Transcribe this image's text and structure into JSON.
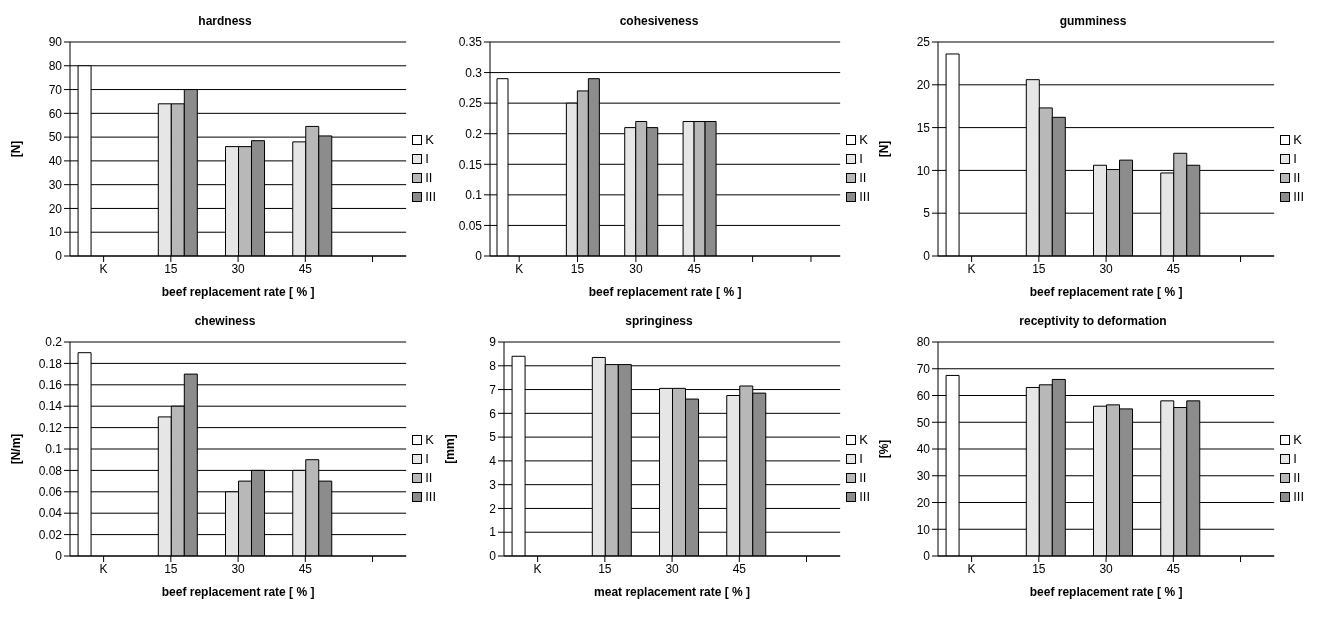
{
  "chart_data": [
    {
      "type": "bar",
      "title": "hardness",
      "xlabel": "beef replacement rate [ % ]",
      "ylabel": "[N]",
      "categories": [
        "K",
        "15",
        "30",
        "45",
        null
      ],
      "ylim": [
        0,
        90
      ],
      "yticks": [
        0,
        10,
        20,
        30,
        40,
        50,
        60,
        70,
        80,
        90
      ],
      "grid": "y",
      "legend": "right",
      "series": [
        {
          "name": "K",
          "color": "#ffffff",
          "values": [
            80,
            null,
            null,
            null,
            null
          ]
        },
        {
          "name": "I",
          "color": "#e6e6e6",
          "values": [
            null,
            64,
            46,
            48,
            null
          ]
        },
        {
          "name": "II",
          "color": "#b8b8b8",
          "values": [
            null,
            64,
            46,
            54.5,
            null
          ]
        },
        {
          "name": "III",
          "color": "#8c8c8c",
          "values": [
            null,
            70,
            48.5,
            50.5,
            null
          ]
        }
      ]
    },
    {
      "type": "bar",
      "title": "cohesiveness",
      "xlabel": "beef replacement rate  [ % ]",
      "categories": [
        "K",
        "15",
        "30",
        "45",
        null,
        null
      ],
      "ylim": [
        0,
        0.35
      ],
      "yticks": [
        0,
        0.05,
        0.1,
        0.15,
        0.2,
        0.25,
        0.3,
        0.35
      ],
      "grid": "y",
      "legend": "right",
      "series": [
        {
          "name": "K",
          "color": "#ffffff",
          "values": [
            0.29,
            null,
            null,
            null,
            null,
            null
          ]
        },
        {
          "name": "I",
          "color": "#e6e6e6",
          "values": [
            null,
            0.25,
            0.21,
            0.22,
            null,
            null
          ]
        },
        {
          "name": "II",
          "color": "#b8b8b8",
          "values": [
            null,
            0.27,
            0.22,
            0.22,
            null,
            null
          ]
        },
        {
          "name": "III",
          "color": "#8c8c8c",
          "values": [
            null,
            0.29,
            0.21,
            0.22,
            null,
            null
          ]
        }
      ]
    },
    {
      "type": "bar",
      "title": "gumminess",
      "xlabel": "beef replacement rate [ % ]",
      "ylabel": "[N]",
      "categories": [
        "K",
        "15",
        "30",
        "45",
        null
      ],
      "ylim": [
        0,
        25
      ],
      "yticks": [
        0,
        5,
        10,
        15,
        20,
        25
      ],
      "grid": "y",
      "legend": "right",
      "series": [
        {
          "name": "K",
          "color": "#ffffff",
          "values": [
            23.6,
            null,
            null,
            null,
            null
          ]
        },
        {
          "name": "I",
          "color": "#e6e6e6",
          "values": [
            null,
            20.6,
            10.6,
            9.7,
            null
          ]
        },
        {
          "name": "II",
          "color": "#b8b8b8",
          "values": [
            null,
            17.3,
            10.1,
            12,
            null
          ]
        },
        {
          "name": "III",
          "color": "#8c8c8c",
          "values": [
            null,
            16.2,
            11.2,
            10.6,
            null
          ]
        }
      ]
    },
    {
      "type": "bar",
      "title": "chewiness",
      "xlabel": "beef replacement rate  [ % ]",
      "ylabel": "[N/m]",
      "categories": [
        "K",
        "15",
        "30",
        "45",
        null
      ],
      "ylim": [
        0,
        0.2
      ],
      "yticks": [
        0,
        0.02,
        0.04,
        0.06,
        0.08,
        0.1,
        0.12,
        0.14,
        0.16,
        0.18,
        0.2
      ],
      "grid": "y",
      "legend": "right",
      "series": [
        {
          "name": "K",
          "color": "#ffffff",
          "values": [
            0.19,
            null,
            null,
            null,
            null
          ]
        },
        {
          "name": "I",
          "color": "#e6e6e6",
          "values": [
            null,
            0.13,
            0.06,
            0.08,
            null
          ]
        },
        {
          "name": "II",
          "color": "#b8b8b8",
          "values": [
            null,
            0.14,
            0.07,
            0.09,
            null
          ]
        },
        {
          "name": "III",
          "color": "#8c8c8c",
          "values": [
            null,
            0.17,
            0.08,
            0.07,
            null
          ]
        }
      ]
    },
    {
      "type": "bar",
      "title": "springiness",
      "xlabel": "meat replacement rate [ % ]",
      "ylabel": "[mm]",
      "categories": [
        "K",
        "15",
        "30",
        "45",
        null
      ],
      "ylim": [
        0,
        9
      ],
      "yticks": [
        0,
        1,
        2,
        3,
        4,
        5,
        6,
        7,
        8,
        9
      ],
      "grid": "y",
      "legend": "right",
      "series": [
        {
          "name": "K",
          "color": "#ffffff",
          "values": [
            8.4,
            null,
            null,
            null,
            null
          ]
        },
        {
          "name": "I",
          "color": "#e6e6e6",
          "values": [
            null,
            8.35,
            7.05,
            6.75,
            null
          ]
        },
        {
          "name": "II",
          "color": "#b8b8b8",
          "values": [
            null,
            8.05,
            7.05,
            7.15,
            null
          ]
        },
        {
          "name": "III",
          "color": "#8c8c8c",
          "values": [
            null,
            8.05,
            6.6,
            6.85,
            null
          ]
        }
      ]
    },
    {
      "type": "bar",
      "title": "receptivity to deformation",
      "xlabel": "beef replacement rate [ % ]",
      "ylabel": "[%]",
      "categories": [
        "K",
        "15",
        "30",
        "45",
        null
      ],
      "ylim": [
        0,
        80
      ],
      "yticks": [
        0,
        10,
        20,
        30,
        40,
        50,
        60,
        70,
        80
      ],
      "grid": "y",
      "legend": "right",
      "series": [
        {
          "name": "K",
          "color": "#ffffff",
          "values": [
            67.5,
            null,
            null,
            null,
            null
          ]
        },
        {
          "name": "I",
          "color": "#e6e6e6",
          "values": [
            null,
            63,
            56,
            58,
            null
          ]
        },
        {
          "name": "II",
          "color": "#b8b8b8",
          "values": [
            null,
            64,
            56.5,
            55.5,
            null
          ]
        },
        {
          "name": "III",
          "color": "#8c8c8c",
          "values": [
            null,
            66,
            55,
            58,
            null
          ]
        }
      ]
    }
  ]
}
